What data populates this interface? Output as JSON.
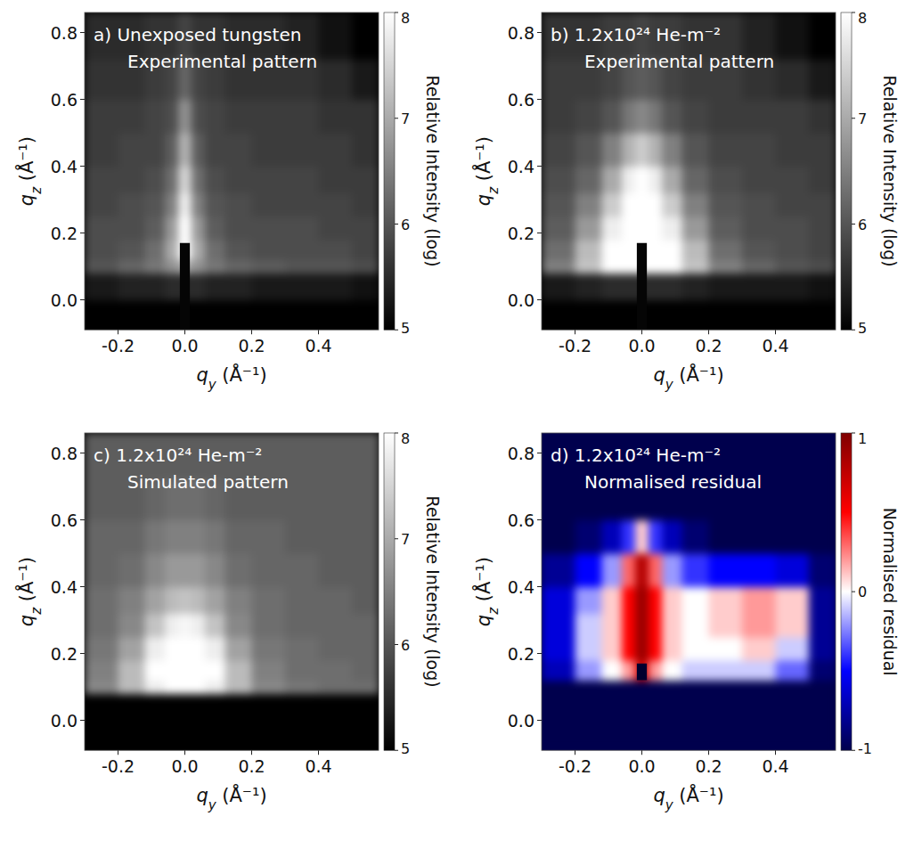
{
  "chart_data": [
    {
      "type": "heatmap",
      "color": "gray",
      "annotations": [
        "a) Unexposed tungsten",
        "Experimental pattern"
      ],
      "x_label": "qy (Å⁻¹)",
      "y_label": "qz (Å⁻¹)",
      "xlim": [
        -0.3,
        0.58
      ],
      "ylim": [
        -0.09,
        0.86
      ],
      "xticks": [
        -0.2,
        {
          "value": 0,
          "label": "0.0"
        },
        0.2,
        0.4
      ],
      "yticks": [
        {
          "value": 0,
          "label": "0.0"
        },
        0.2,
        0.4,
        0.6,
        0.8
      ],
      "qy_edges": [
        -0.3,
        -0.2,
        -0.12,
        -0.06,
        -0.02,
        0.02,
        0.06,
        0.12,
        0.2,
        0.3,
        0.4,
        0.5,
        0.58
      ],
      "qz_edges": [
        -0.09,
        0,
        0.08,
        0.12,
        0.18,
        0.25,
        0.32,
        0.4,
        0.5,
        0.6,
        0.72,
        0.86
      ],
      "cells": [
        [
          5,
          5,
          5,
          5,
          5,
          5,
          5,
          5,
          5,
          5,
          5,
          5
        ],
        [
          5.3,
          5.4,
          5.4,
          5.5,
          5.5,
          5.5,
          5.4,
          5.4,
          5.3,
          5.3,
          5.3,
          5.2
        ],
        [
          6.0,
          6.2,
          6.4,
          6.7,
          7.0,
          6.7,
          6.4,
          6.2,
          6.1,
          6.0,
          6.0,
          5.9
        ],
        [
          5.9,
          6.0,
          6.3,
          7.0,
          8.0,
          7.0,
          6.3,
          6.0,
          5.9,
          5.9,
          5.9,
          5.8
        ],
        [
          5.9,
          5.9,
          6.1,
          6.8,
          8.0,
          6.8,
          6.1,
          5.9,
          5.9,
          5.9,
          5.8,
          5.8
        ],
        [
          5.8,
          5.9,
          6.0,
          6.5,
          7.8,
          6.5,
          6.0,
          5.9,
          5.8,
          5.8,
          5.8,
          5.7
        ],
        [
          5.8,
          5.8,
          5.9,
          6.3,
          7.5,
          6.3,
          5.9,
          5.8,
          5.8,
          5.8,
          5.7,
          5.7
        ],
        [
          5.7,
          5.8,
          5.8,
          6.1,
          7.1,
          6.1,
          5.8,
          5.8,
          5.7,
          5.7,
          5.7,
          5.6
        ],
        [
          5.7,
          5.7,
          5.8,
          5.9,
          6.7,
          5.9,
          5.8,
          5.7,
          5.7,
          5.7,
          5.6,
          5.6
        ],
        [
          5.6,
          5.6,
          5.7,
          5.8,
          6.2,
          5.8,
          5.7,
          5.6,
          5.6,
          5.6,
          5.5,
          5.3
        ],
        [
          5.5,
          5.5,
          5.6,
          5.6,
          5.8,
          5.6,
          5.6,
          5.5,
          5.5,
          5.4,
          5.2,
          5.0
        ]
      ],
      "beamstop": {
        "qy": [
          -0.015,
          0.015
        ],
        "qz": [
          -0.09,
          0.17
        ]
      },
      "colorbar_label": "Relative Intensity (log)",
      "colorbar_range": [
        5,
        8
      ],
      "colorbar_ticks": [
        5,
        6,
        7,
        8
      ]
    },
    {
      "type": "heatmap",
      "color": "gray",
      "annotations": [
        "b) 1.2x10²⁴ He-m⁻²",
        "Experimental pattern"
      ],
      "x_label": "qy (Å⁻¹)",
      "y_label": "qz (Å⁻¹)",
      "xlim": [
        -0.3,
        0.58
      ],
      "ylim": [
        -0.09,
        0.86
      ],
      "xticks": [
        -0.2,
        {
          "value": 0,
          "label": "0.0"
        },
        0.2,
        0.4
      ],
      "yticks": [
        {
          "value": 0,
          "label": "0.0"
        },
        0.2,
        0.4,
        0.6,
        0.8
      ],
      "qy_edges": [
        -0.3,
        -0.2,
        -0.12,
        -0.06,
        -0.02,
        0.02,
        0.06,
        0.12,
        0.2,
        0.3,
        0.4,
        0.5,
        0.58
      ],
      "qz_edges": [
        -0.09,
        0,
        0.08,
        0.12,
        0.18,
        0.25,
        0.32,
        0.4,
        0.5,
        0.6,
        0.72,
        0.86
      ],
      "cells": [
        [
          5,
          5,
          5,
          5,
          5,
          5,
          5,
          5,
          5,
          5,
          5,
          5
        ],
        [
          5.3,
          5.4,
          5.5,
          5.5,
          5.5,
          5.5,
          5.5,
          5.4,
          5.3,
          5.3,
          5.3,
          5.2
        ],
        [
          6.5,
          7.3,
          8,
          8,
          8,
          8,
          8,
          7.3,
          6.5,
          6.2,
          6.0,
          5.9
        ],
        [
          6.3,
          7.2,
          8,
          8,
          8,
          8,
          8,
          7.2,
          6.3,
          6.0,
          5.9,
          5.8
        ],
        [
          6.1,
          6.8,
          7.8,
          8,
          8,
          8,
          7.8,
          6.8,
          6.1,
          5.9,
          5.9,
          5.8
        ],
        [
          6.0,
          6.5,
          7.4,
          8,
          8,
          8,
          7.4,
          6.5,
          6.0,
          5.9,
          5.8,
          5.8
        ],
        [
          5.9,
          6.2,
          7.0,
          7.8,
          8,
          7.8,
          7.0,
          6.2,
          5.9,
          5.8,
          5.8,
          5.7
        ],
        [
          5.8,
          6.0,
          6.5,
          7.1,
          7.4,
          7.1,
          6.5,
          6.0,
          5.8,
          5.8,
          5.7,
          5.7
        ],
        [
          5.7,
          5.8,
          6.0,
          6.4,
          6.6,
          6.4,
          6.0,
          5.8,
          5.7,
          5.7,
          5.7,
          5.6
        ],
        [
          5.7,
          5.7,
          5.8,
          6.0,
          6.1,
          6.0,
          5.8,
          5.7,
          5.7,
          5.6,
          5.5,
          5.3
        ],
        [
          5.6,
          5.6,
          5.7,
          5.7,
          5.8,
          5.7,
          5.7,
          5.6,
          5.6,
          5.4,
          5.2,
          5.0
        ]
      ],
      "beamstop": {
        "qy": [
          -0.015,
          0.015
        ],
        "qz": [
          -0.09,
          0.17
        ]
      },
      "colorbar_label": "Relative Intensity (log)",
      "colorbar_range": [
        5,
        8
      ],
      "colorbar_ticks": [
        5,
        6,
        7,
        8
      ]
    },
    {
      "type": "heatmap",
      "color": "gray",
      "annotations": [
        "c) 1.2x10²⁴ He-m⁻²",
        "Simulated pattern"
      ],
      "x_label": "qy (Å⁻¹)",
      "y_label": "qz (Å⁻¹)",
      "xlim": [
        -0.3,
        0.58
      ],
      "ylim": [
        -0.09,
        0.86
      ],
      "xticks": [
        -0.2,
        {
          "value": 0,
          "label": "0.0"
        },
        0.2,
        0.4
      ],
      "yticks": [
        {
          "value": 0,
          "label": "0.0"
        },
        0.2,
        0.4,
        0.6,
        0.8
      ],
      "qy_edges": [
        -0.3,
        -0.2,
        -0.12,
        -0.06,
        -0.02,
        0.02,
        0.06,
        0.12,
        0.2,
        0.3,
        0.4,
        0.5,
        0.58
      ],
      "qz_edges": [
        -0.09,
        0,
        0.08,
        0.12,
        0.18,
        0.25,
        0.32,
        0.4,
        0.5,
        0.6,
        0.72,
        0.86
      ],
      "cells": [
        [
          5,
          5,
          5,
          5,
          5,
          5,
          5,
          5,
          5,
          5,
          5,
          5
        ],
        [
          5,
          5,
          5,
          5,
          5,
          5,
          5,
          5,
          5,
          5,
          5,
          5
        ],
        [
          6.6,
          7.2,
          7.8,
          8,
          8,
          8,
          7.8,
          7.2,
          6.6,
          6.4,
          6.3,
          6.3
        ],
        [
          6.5,
          7.2,
          8,
          8,
          8,
          8,
          8,
          7.2,
          6.5,
          6.3,
          6.3,
          6.2
        ],
        [
          6.4,
          6.9,
          7.8,
          8,
          8,
          8,
          7.8,
          6.9,
          6.4,
          6.3,
          6.2,
          6.2
        ],
        [
          6.3,
          6.6,
          7.3,
          7.8,
          7.9,
          7.8,
          7.3,
          6.6,
          6.3,
          6.2,
          6.2,
          6.2
        ],
        [
          6.3,
          6.5,
          6.9,
          7.2,
          7.3,
          7.2,
          6.9,
          6.5,
          6.3,
          6.2,
          6.2,
          6.1
        ],
        [
          6.2,
          6.3,
          6.6,
          6.8,
          6.8,
          6.8,
          6.6,
          6.3,
          6.2,
          6.2,
          6.1,
          6.1
        ],
        [
          6.2,
          6.2,
          6.4,
          6.5,
          6.5,
          6.5,
          6.4,
          6.2,
          6.2,
          6.1,
          6.1,
          6.1
        ],
        [
          6.1,
          6.1,
          6.2,
          6.3,
          6.3,
          6.3,
          6.2,
          6.1,
          6.1,
          6.1,
          6.1,
          6.1
        ],
        [
          6.1,
          6.1,
          6.1,
          6.1,
          6.1,
          6.1,
          6.1,
          6.1,
          6.1,
          6.1,
          6.1,
          6.1
        ]
      ],
      "colorbar_label": "Relative Intensity (log)",
      "colorbar_range": [
        5,
        8
      ],
      "colorbar_ticks": [
        5,
        6,
        7,
        8
      ]
    },
    {
      "type": "heatmap",
      "color": "seismic",
      "annotations": [
        "d) 1.2x10²⁴ He-m⁻²",
        "Normalised residual"
      ],
      "x_label": "qy (Å⁻¹)",
      "y_label": "qz (Å⁻¹)",
      "xlim": [
        -0.3,
        0.58
      ],
      "ylim": [
        -0.09,
        0.86
      ],
      "xticks": [
        -0.2,
        {
          "value": 0,
          "label": "0.0"
        },
        0.2,
        0.4
      ],
      "yticks": [
        {
          "value": 0,
          "label": "0.0"
        },
        0.2,
        0.4,
        0.6,
        0.8
      ],
      "qy_edges": [
        -0.3,
        -0.2,
        -0.12,
        -0.06,
        -0.02,
        0.02,
        0.06,
        0.12,
        0.2,
        0.3,
        0.4,
        0.5,
        0.58
      ],
      "qz_edges": [
        -0.09,
        0,
        0.08,
        0.12,
        0.18,
        0.25,
        0.32,
        0.4,
        0.5,
        0.6,
        0.72,
        0.86
      ],
      "cells": [
        [
          -1,
          -1,
          -1,
          -1,
          -1,
          -1,
          -1,
          -1,
          -1,
          -1,
          -1,
          -1
        ],
        [
          -1,
          -1,
          -1,
          -1,
          -1,
          -1,
          -1,
          -1,
          -1,
          -1,
          -1,
          -1
        ],
        [
          -1,
          -1,
          -1,
          -1,
          -1,
          -1,
          -1,
          -1,
          -1,
          -1,
          -1,
          -1
        ],
        [
          -0.7,
          -0.2,
          0,
          0.2,
          0.7,
          0.2,
          0,
          -0.1,
          -0.1,
          -0.1,
          -0.3,
          -0.9
        ],
        [
          -0.6,
          -0.1,
          0.1,
          0.5,
          0.9,
          0.5,
          0.1,
          0,
          0,
          0.1,
          -0.1,
          -0.8
        ],
        [
          -0.6,
          -0.1,
          0.1,
          0.5,
          0.9,
          0.5,
          0.1,
          0,
          0.1,
          0.2,
          0.1,
          -0.8
        ],
        [
          -0.6,
          -0.2,
          0.1,
          0.5,
          0.9,
          0.5,
          0.1,
          0,
          0.1,
          0.2,
          0.1,
          -0.8
        ],
        [
          -0.8,
          -0.5,
          -0.2,
          0.3,
          0.8,
          0.3,
          -0.2,
          -0.4,
          -0.5,
          -0.5,
          -0.6,
          -0.9
        ],
        [
          -1,
          -0.9,
          -0.7,
          -0.4,
          0.1,
          -0.4,
          -0.7,
          -0.9,
          -1,
          -1,
          -1,
          -1
        ],
        [
          -1,
          -1,
          -1,
          -1,
          -1,
          -1,
          -1,
          -1,
          -1,
          -1,
          -1,
          -1
        ],
        [
          -1,
          -1,
          -1,
          -1,
          -1,
          -1,
          -1,
          -1,
          -1,
          -1,
          -1,
          -1
        ]
      ],
      "beamstop": {
        "qy": [
          -0.015,
          0.015
        ],
        "qz": [
          0.12,
          0.17
        ]
      },
      "colorbar_label": "Normalised residual",
      "colorbar_range": [
        -1,
        1
      ],
      "colorbar_ticks": [
        -1,
        0,
        1
      ]
    }
  ]
}
